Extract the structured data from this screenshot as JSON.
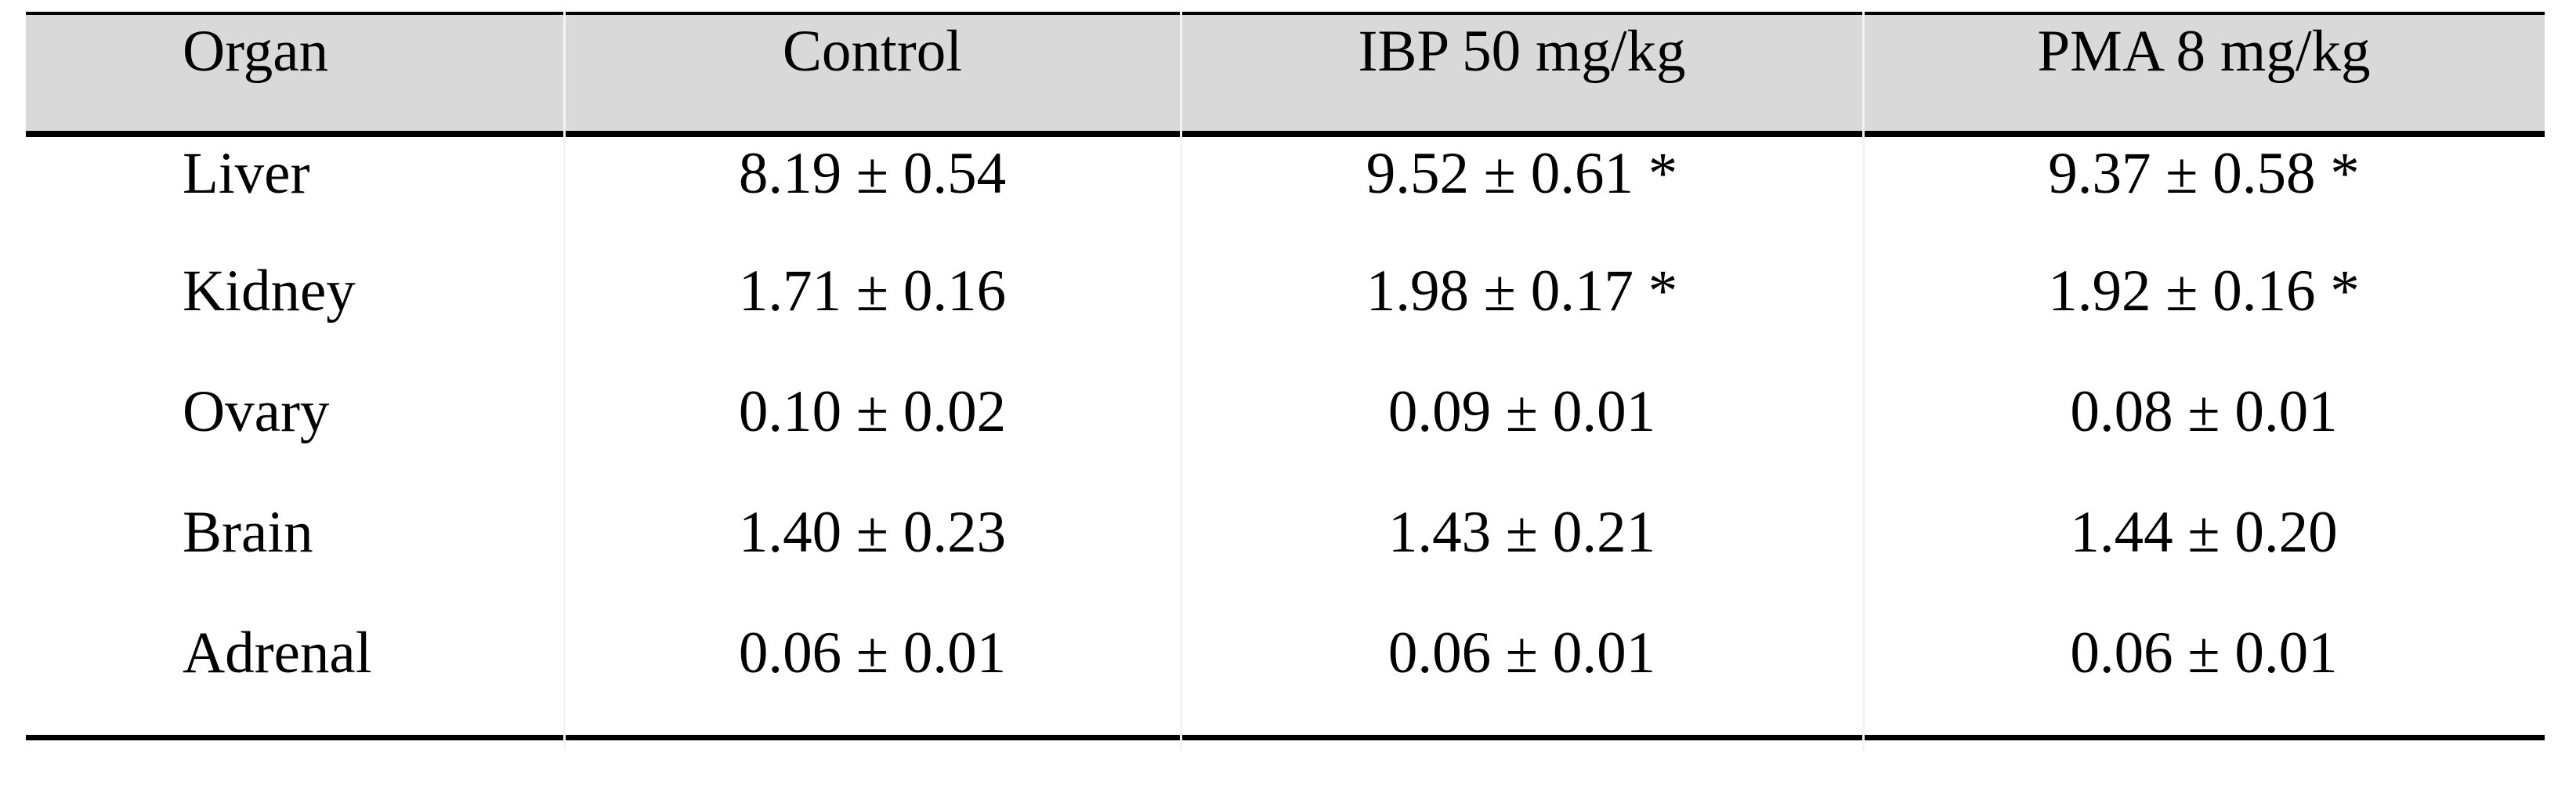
{
  "table": {
    "columns": [
      "Organ",
      "Control",
      "IBP 50 mg/kg",
      "PMA 8 mg/kg"
    ],
    "rows": [
      {
        "organ": "Liver",
        "cells": [
          "8.19 ± 0.54",
          "9.52 ± 0.61 *",
          "9.37 ± 0.58 *"
        ]
      },
      {
        "organ": "Kidney",
        "cells": [
          "1.71 ± 0.16",
          "1.98 ± 0.17 *",
          "1.92 ± 0.16 *"
        ]
      },
      {
        "organ": "Ovary",
        "cells": [
          "0.10 ± 0.02",
          "0.09 ± 0.01",
          "0.08 ± 0.01"
        ]
      },
      {
        "organ": "Brain",
        "cells": [
          "1.40 ± 0.23",
          "1.43 ± 0.21",
          "1.44 ± 0.20"
        ]
      },
      {
        "organ": "Adrenal",
        "cells": [
          "0.06 ± 0.01",
          "0.06 ± 0.01",
          "0.06 ± 0.01"
        ]
      }
    ],
    "colors": {
      "header_bg": "#d9d9d9",
      "rule": "#000000",
      "text": "#000000",
      "column_separator": "#f4f4f4"
    }
  },
  "chart_data": {
    "type": "table",
    "columns": [
      "Organ",
      "Control",
      "IBP 50 mg/kg",
      "PMA 8 mg/kg"
    ],
    "rows": [
      [
        "Liver",
        "8.19 ± 0.54",
        "9.52 ± 0.61 *",
        "9.37 ± 0.58 *"
      ],
      [
        "Kidney",
        "1.71 ± 0.16",
        "1.98 ± 0.17 *",
        "1.92 ± 0.16 *"
      ],
      [
        "Ovary",
        "0.10 ± 0.02",
        "0.09 ± 0.01",
        "0.08 ± 0.01"
      ],
      [
        "Brain",
        "1.40 ± 0.23",
        "1.43 ± 0.21",
        "1.44 ± 0.20"
      ],
      [
        "Adrenal",
        "0.06 ± 0.01",
        "0.06 ± 0.01",
        "0.06 ± 0.01"
      ]
    ],
    "values": {
      "Control": [
        8.19,
        1.71,
        0.1,
        1.4,
        0.06
      ],
      "IBP 50 mg/kg": [
        9.52,
        1.98,
        0.09,
        1.43,
        0.06
      ],
      "PMA 8 mg/kg": [
        9.37,
        1.92,
        0.08,
        1.44,
        0.06
      ]
    },
    "errors": {
      "Control": [
        0.54,
        0.16,
        0.02,
        0.23,
        0.01
      ],
      "IBP 50 mg/kg": [
        0.61,
        0.17,
        0.01,
        0.21,
        0.01
      ],
      "PMA 8 mg/kg": [
        0.58,
        0.16,
        0.01,
        0.2,
        0.01
      ]
    },
    "significance_marker": "*",
    "significant_cells": [
      [
        "Liver",
        "IBP 50 mg/kg"
      ],
      [
        "Liver",
        "PMA 8 mg/kg"
      ],
      [
        "Kidney",
        "IBP 50 mg/kg"
      ],
      [
        "Kidney",
        "PMA 8 mg/kg"
      ]
    ]
  }
}
